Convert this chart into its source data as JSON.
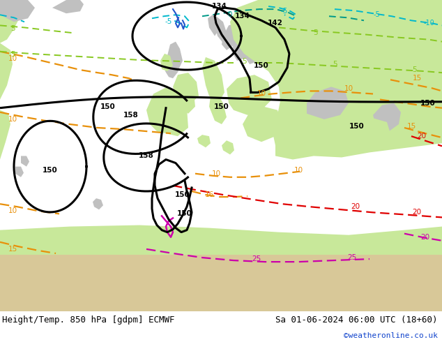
{
  "title_left": "Height/Temp. 850 hPa [gdpm] ECMWF",
  "title_right": "Sa 01-06-2024 06:00 UTC (18+60)",
  "credit": "©weatheronline.co.uk",
  "bg_light": "#e8e8e8",
  "bg_ocean": "#d8d8d8",
  "map_green": "#c8e89a",
  "map_gray": "#b4b4b4",
  "map_light_gray": "#c0c0c0",
  "col_black": "#000000",
  "col_orange": "#e8900a",
  "col_red": "#e00000",
  "col_magenta": "#cc00aa",
  "col_cyan": "#00b8cc",
  "col_teal": "#009988",
  "col_lime": "#88c820",
  "col_blue": "#2255cc",
  "credit_color": "#1144cc",
  "title_fontsize": 9,
  "credit_fontsize": 8,
  "label_fontsize": 7,
  "fig_width": 6.34,
  "fig_height": 4.9,
  "dpi": 100
}
